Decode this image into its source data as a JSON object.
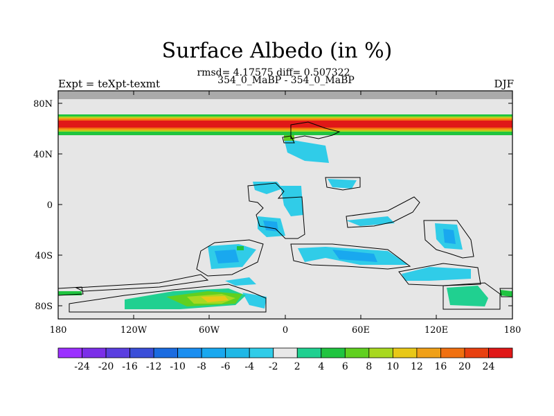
{
  "title": "Surface Albedo (in %)",
  "stats": "rmsd= 4.17575 diff= 0.507322",
  "comparison": "354_0_MaBP - 354_0_MaBP",
  "experiment": "Expt = teXpt-texmt",
  "season": "DJF",
  "axes": {
    "lat_ticks": [
      "80N",
      "40N",
      "0",
      "40S",
      "80S"
    ],
    "lon_ticks": [
      "180",
      "120W",
      "60W",
      "0",
      "60E",
      "120E",
      "180"
    ]
  },
  "colorbar": {
    "labels": [
      "-24",
      "-20",
      "-16",
      "-12",
      "-10",
      "-8",
      "-6",
      "-4",
      "-2",
      "2",
      "4",
      "6",
      "8",
      "10",
      "12",
      "16",
      "20",
      "24"
    ],
    "colors": [
      "#9b30ff",
      "#7b2fe8",
      "#5a3ee0",
      "#3a4ed8",
      "#1a6be0",
      "#1a8ef0",
      "#19a8ef",
      "#20b8e6",
      "#30cce8",
      "#e8e8e8",
      "#20d090",
      "#20c440",
      "#60d020",
      "#a8d820",
      "#e8c818",
      "#f0a018",
      "#f07010",
      "#e84010",
      "#e01818"
    ]
  }
}
